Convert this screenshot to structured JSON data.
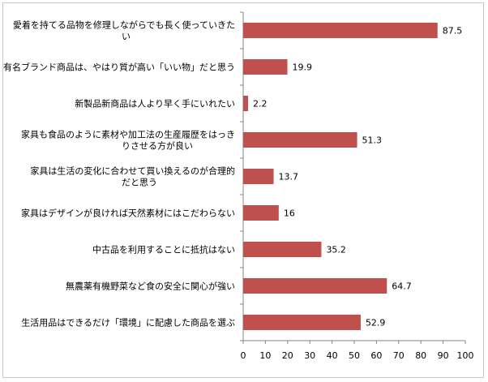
{
  "chart_data": {
    "type": "bar",
    "orientation": "horizontal",
    "categories": [
      [
        "愛着を持てる品物を修理しながらでも長く使っていきた",
        "い"
      ],
      [
        "有名ブランド商品は、やはり質が高い「いい物」だと思う"
      ],
      [
        "新製品新商品は人より早く手にいれたい"
      ],
      [
        "家具も食品のように素材や加工法の生産履歴をはっき",
        "りさせる方が良い"
      ],
      [
        "家具は生活の変化に合わせて買い換えるのが合理的",
        "だと思う"
      ],
      [
        "家具はデザインが良ければ天然素材にはこだわらない"
      ],
      [
        "中古品を利用することに抵抗はない"
      ],
      [
        "無農薬有機野菜など食の安全に関心が強い"
      ],
      [
        "生活用品はできるだけ「環境」に配慮した商品を選ぶ"
      ]
    ],
    "values": [
      87.5,
      19.9,
      2.2,
      51.3,
      13.7,
      16,
      35.2,
      64.7,
      52.9
    ],
    "data_labels": [
      "87.5",
      "19.9",
      "2.2",
      "51.3",
      "13.7",
      "16",
      "35.2",
      "64.7",
      "52.9"
    ],
    "xlim": [
      0,
      100
    ],
    "xticks": [
      0,
      10,
      20,
      30,
      40,
      50,
      60,
      70,
      80,
      90,
      100
    ],
    "bar_color": "#c0504d",
    "grid": false,
    "legend": "none"
  }
}
